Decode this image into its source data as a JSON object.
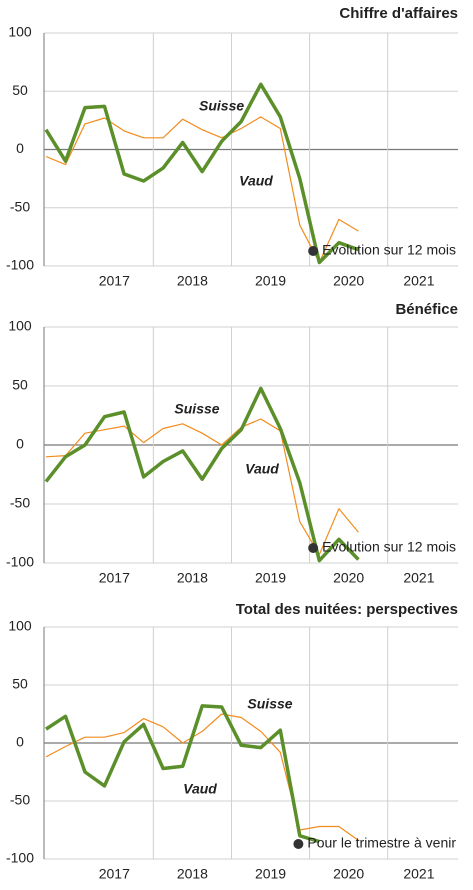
{
  "chart_data": [
    {
      "type": "line",
      "title": "Chiffre d'affaires",
      "annotation": "Evolution sur 12 mois",
      "x": [
        2016.625,
        2016.875,
        2017.125,
        2017.375,
        2017.625,
        2017.875,
        2018.125,
        2018.375,
        2018.625,
        2018.875,
        2019.125,
        2019.375,
        2019.625,
        2019.875,
        2020.125,
        2020.375,
        2020.625
      ],
      "series": [
        {
          "name": "Suisse",
          "color": "#f28c1e",
          "values": [
            -6,
            -13,
            22,
            27,
            16,
            10,
            10,
            26,
            17,
            10,
            18,
            28,
            18,
            -65,
            -97,
            -60,
            -70
          ]
        },
        {
          "name": "Vaud",
          "color": "#5b8f2a",
          "values": [
            17,
            -10,
            36,
            37,
            -21,
            -27,
            -16,
            6,
            -19,
            7,
            24,
            56,
            28,
            -25,
            -97,
            -80,
            -86
          ]
        }
      ],
      "xlim": [
        2016.6,
        2021.9
      ],
      "xticks": [
        {
          "value": 2017.5,
          "label": "2017"
        },
        {
          "value": 2018.5,
          "label": "2018"
        },
        {
          "value": 2019.5,
          "label": "2019"
        },
        {
          "value": 2020.5,
          "label": "2020"
        },
        {
          "value": 2021.4,
          "label": "2021"
        }
      ],
      "xgrid": [
        2018,
        2019,
        2020,
        2021
      ],
      "ylim": [
        -100,
        100
      ],
      "yticks": [
        -100,
        -50,
        0,
        50,
        100
      ],
      "grid": true
    },
    {
      "type": "line",
      "title": "Bénéfice",
      "annotation": "Evolution sur 12 mois",
      "x": [
        2016.625,
        2016.875,
        2017.125,
        2017.375,
        2017.625,
        2017.875,
        2018.125,
        2018.375,
        2018.625,
        2018.875,
        2019.125,
        2019.375,
        2019.625,
        2019.875,
        2020.125,
        2020.375,
        2020.625
      ],
      "series": [
        {
          "name": "Suisse",
          "color": "#f28c1e",
          "values": [
            -10,
            -9,
            10,
            13,
            16,
            2,
            14,
            18,
            10,
            0,
            15,
            22,
            12,
            -65,
            -93,
            -54,
            -74
          ]
        },
        {
          "name": "Vaud",
          "color": "#5b8f2a",
          "values": [
            -31,
            -10,
            0,
            24,
            28,
            -27,
            -14,
            -5,
            -29,
            -3,
            13,
            48,
            14,
            -32,
            -98,
            -80,
            -97
          ]
        }
      ],
      "xlim": [
        2016.6,
        2021.9
      ],
      "xticks": [
        {
          "value": 2017.5,
          "label": "2017"
        },
        {
          "value": 2018.5,
          "label": "2018"
        },
        {
          "value": 2019.5,
          "label": "2019"
        },
        {
          "value": 2020.5,
          "label": "2020"
        },
        {
          "value": 2021.4,
          "label": "2021"
        }
      ],
      "xgrid": [
        2018,
        2019,
        2020,
        2021
      ],
      "ylim": [
        -100,
        100
      ],
      "yticks": [
        -100,
        -50,
        0,
        50,
        100
      ],
      "grid": true
    },
    {
      "type": "line",
      "title": "Total des nuitées: perspectives",
      "annotation": "Pour le trimestre à venir",
      "x": [
        2016.625,
        2016.875,
        2017.125,
        2017.375,
        2017.625,
        2017.875,
        2018.125,
        2018.375,
        2018.625,
        2018.875,
        2019.125,
        2019.375,
        2019.625,
        2019.875,
        2020.125,
        2020.375,
        2020.625
      ],
      "series": [
        {
          "name": "Suisse",
          "color": "#f28c1e",
          "values": [
            -12,
            -3,
            5,
            5,
            9,
            21,
            14,
            0,
            10,
            25,
            22,
            10,
            -8,
            -75,
            -72,
            -72,
            -84
          ]
        },
        {
          "name": "Vaud",
          "color": "#5b8f2a",
          "values": [
            12,
            23,
            -25,
            -37,
            1,
            16,
            -22,
            -20,
            32,
            31,
            -2,
            -4,
            11,
            -80,
            -85,
            null,
            null
          ]
        }
      ],
      "xlim": [
        2016.6,
        2021.9
      ],
      "xticks": [
        {
          "value": 2017.5,
          "label": "2017"
        },
        {
          "value": 2018.5,
          "label": "2018"
        },
        {
          "value": 2019.5,
          "label": "2019"
        },
        {
          "value": 2020.5,
          "label": "2020"
        },
        {
          "value": 2021.4,
          "label": "2021"
        }
      ],
      "xgrid": [
        2018,
        2019,
        2020,
        2021
      ],
      "ylim": [
        -100,
        100
      ],
      "yticks": [
        -100,
        -50,
        0,
        50,
        100
      ],
      "grid": true
    }
  ]
}
